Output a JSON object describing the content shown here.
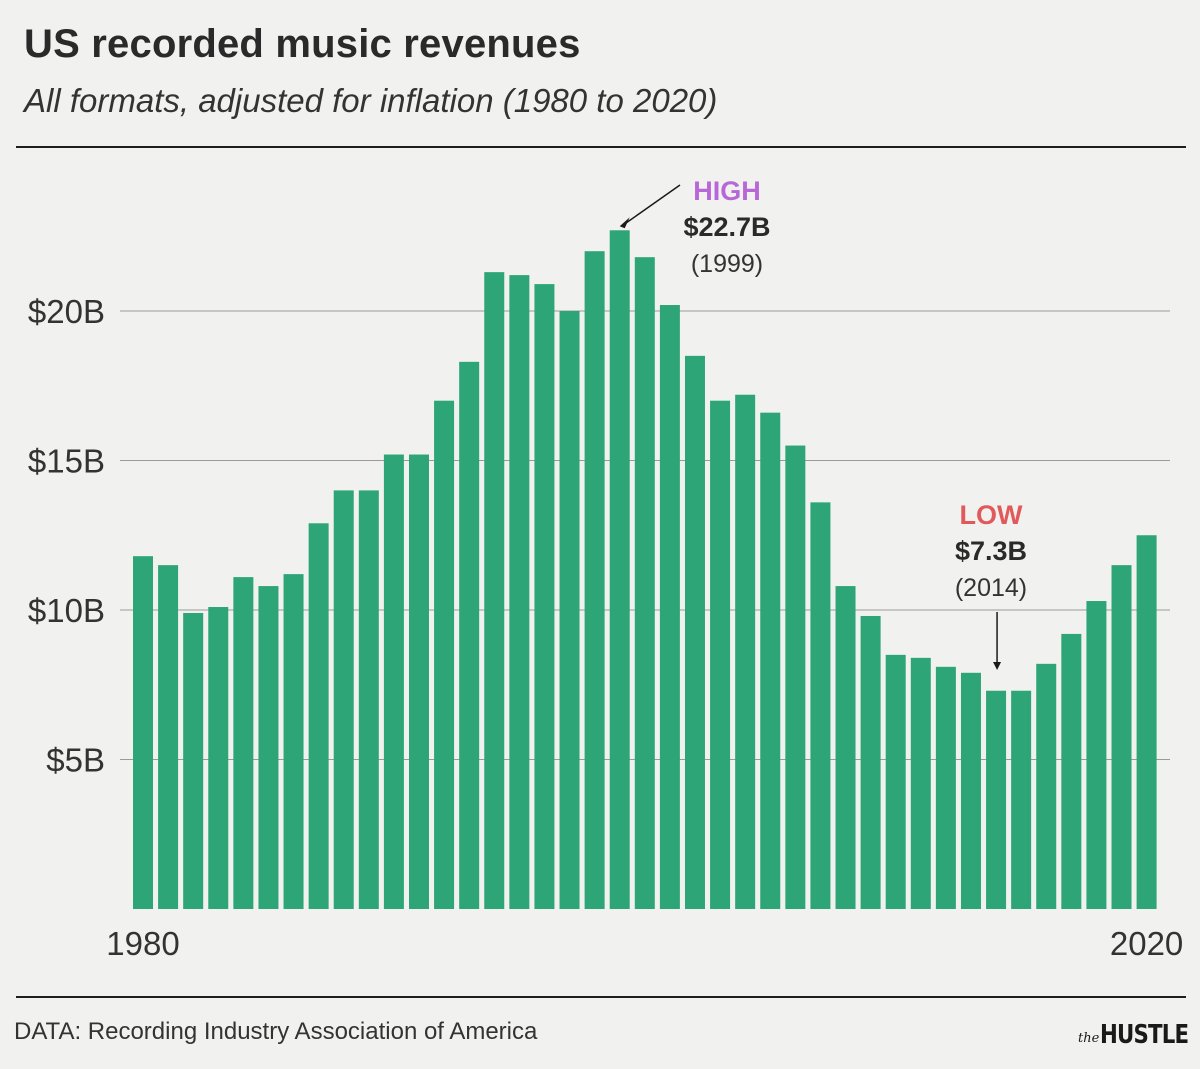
{
  "header": {
    "title": "US recorded music revenues",
    "subtitle": "All formats, adjusted for inflation (1980 to 2020)"
  },
  "footer": {
    "source": "DATA: Recording Industry Association of America",
    "logo_prefix": "the",
    "logo_brand": "HUSTLE"
  },
  "colors": {
    "bar": "#2ea577",
    "background": "#f1f2f0",
    "high_label": "#b867d8",
    "low_label": "#e2595b",
    "gridline": "#9a9a9a",
    "rule": "#1e1e1e"
  },
  "chart_data": {
    "type": "bar",
    "title": "US recorded music revenues",
    "subtitle": "All formats, adjusted for inflation (1980 to 2020)",
    "x": [
      1980,
      1981,
      1982,
      1983,
      1984,
      1985,
      1986,
      1987,
      1988,
      1989,
      1990,
      1991,
      1992,
      1993,
      1994,
      1995,
      1996,
      1997,
      1998,
      1999,
      2000,
      2001,
      2002,
      2003,
      2004,
      2005,
      2006,
      2007,
      2008,
      2009,
      2010,
      2011,
      2012,
      2013,
      2014,
      2015,
      2016,
      2017,
      2018,
      2019,
      2020
    ],
    "values": [
      11.8,
      11.5,
      9.9,
      10.1,
      11.1,
      10.8,
      11.2,
      12.9,
      14.0,
      14.0,
      15.2,
      15.2,
      17.0,
      18.3,
      21.3,
      21.2,
      20.9,
      20.0,
      22.0,
      22.7,
      21.8,
      20.2,
      18.5,
      17.0,
      17.2,
      16.6,
      15.5,
      13.6,
      10.8,
      9.8,
      8.5,
      8.4,
      8.1,
      7.9,
      7.3,
      7.3,
      8.2,
      9.2,
      10.3,
      11.5,
      12.5
    ],
    "yticks": [
      {
        "value": 5,
        "label": "$5B"
      },
      {
        "value": 10,
        "label": "$10B"
      },
      {
        "value": 15,
        "label": "$15B"
      },
      {
        "value": 20,
        "label": "$20B"
      }
    ],
    "ylim": [
      0,
      25
    ],
    "xtick_labels": [
      {
        "year": 1980,
        "label": "1980"
      },
      {
        "year": 2020,
        "label": "2020"
      }
    ],
    "grid": true,
    "annotations": {
      "high": {
        "label": "HIGH",
        "value_label": "$22.7B",
        "year_label": "(1999)",
        "year": 1999
      },
      "low": {
        "label": "LOW",
        "value_label": "$7.3B",
        "year_label": "(2014)",
        "year": 2014
      }
    }
  }
}
